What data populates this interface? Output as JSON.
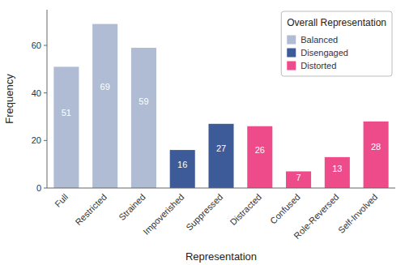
{
  "chart_data": {
    "type": "bar",
    "categories": [
      "Full",
      "Restricted",
      "Strained",
      "Impoverished",
      "Suppressed",
      "Distracted",
      "Confused",
      "Role-Reversed",
      "Self-Involved"
    ],
    "values": [
      51,
      69,
      59,
      16,
      27,
      26,
      7,
      13,
      28
    ],
    "colors": [
      "#b0bcd4",
      "#b0bcd4",
      "#b0bcd4",
      "#3d5a99",
      "#3d5a99",
      "#ee4b8b",
      "#ee4b8b",
      "#ee4b8b",
      "#ee4b8b"
    ],
    "xlabel": "Representation",
    "ylabel": "Frequency",
    "ylim": [
      0,
      75
    ],
    "yticks": [
      0,
      20,
      40,
      60
    ],
    "data_labels": true,
    "grid": false,
    "legend": "upper right",
    "legend_title": "Overall Representation",
    "legend_entries": [
      {
        "name": "Balanced",
        "color": "#b0bcd4"
      },
      {
        "name": "Disengaged",
        "color": "#3d5a99"
      },
      {
        "name": "Distorted",
        "color": "#ee4b8b"
      }
    ]
  }
}
